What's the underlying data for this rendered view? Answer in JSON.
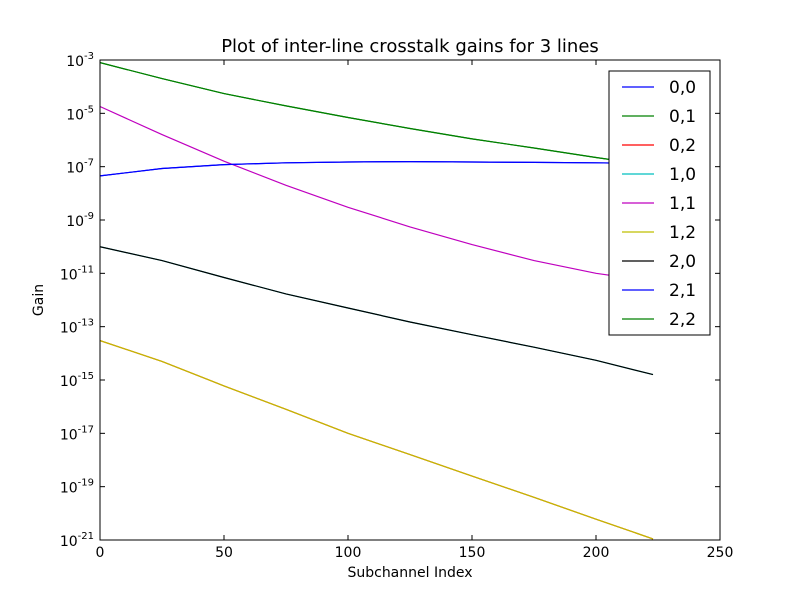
{
  "chart_data": {
    "type": "line",
    "title": "Plot of inter-line crosstalk gains for 3 lines",
    "xlabel": "Subchannel Index",
    "ylabel": "Gain",
    "xlim": [
      0,
      250
    ],
    "ylim": [
      1e-21,
      0.001
    ],
    "yscale": "log",
    "grid": false,
    "legend_position": "top-right",
    "x_ticks": [
      "0",
      "50",
      "100",
      "150",
      "200",
      "250"
    ],
    "y_ticks": [
      {
        "base": "10",
        "exp": "-3",
        "value": 0.001
      },
      {
        "base": "10",
        "exp": "-5",
        "value": 1e-05
      },
      {
        "base": "10",
        "exp": "-7",
        "value": 1e-07
      },
      {
        "base": "10",
        "exp": "-9",
        "value": 1e-09
      },
      {
        "base": "10",
        "exp": "-11",
        "value": 1e-11
      },
      {
        "base": "10",
        "exp": "-13",
        "value": 1e-13
      },
      {
        "base": "10",
        "exp": "-15",
        "value": 1e-15
      },
      {
        "base": "10",
        "exp": "-17",
        "value": 1e-17
      },
      {
        "base": "10",
        "exp": "-19",
        "value": 1e-19
      },
      {
        "base": "10",
        "exp": "-21",
        "value": 1e-21
      }
    ],
    "series": [
      {
        "name": "0,0",
        "color": "#0000ff",
        "x": [
          0,
          25,
          50,
          75,
          100,
          125,
          150,
          175,
          200,
          223
        ],
        "y": [
          4.5e-08,
          8.5e-08,
          1.2e-07,
          1.4e-07,
          1.5e-07,
          1.55e-07,
          1.5e-07,
          1.45e-07,
          1.4e-07,
          1.3e-07
        ]
      },
      {
        "name": "0,1",
        "color": "#008000",
        "x": [
          0,
          25,
          50,
          75,
          100,
          125,
          150,
          175,
          200,
          223
        ],
        "y": [
          0.0008,
          0.0002,
          5.5e-05,
          1.9e-05,
          7e-06,
          2.7e-06,
          1.1e-06,
          5e-07,
          2.2e-07,
          1.1e-07
        ]
      },
      {
        "name": "0,2",
        "color": "#ff0000",
        "x": [
          0,
          25,
          50,
          75,
          100,
          125,
          150,
          175,
          200,
          223
        ],
        "y": [
          3e-14,
          5e-15,
          6e-16,
          8e-17,
          1e-17,
          1.6e-18,
          2.5e-19,
          4e-20,
          6e-21,
          1.1e-21
        ]
      },
      {
        "name": "1,0",
        "color": "#00bfbf",
        "x": [
          0,
          25,
          50,
          75,
          100,
          125,
          150,
          175,
          200,
          223
        ],
        "y": [
          1e-10,
          3e-11,
          7e-12,
          1.7e-12,
          5e-13,
          1.5e-13,
          5e-14,
          1.7e-14,
          5.5e-15,
          1.6e-15
        ]
      },
      {
        "name": "1,1",
        "color": "#bf00bf",
        "x": [
          0,
          25,
          50,
          75,
          100,
          125,
          150,
          175,
          200,
          223
        ],
        "y": [
          1.8e-05,
          1.6e-06,
          1.6e-07,
          2e-08,
          3e-09,
          5.5e-10,
          1.2e-10,
          3e-11,
          1e-11,
          5e-12
        ]
      },
      {
        "name": "1,2",
        "color": "#bfbf00",
        "x": [
          0,
          25,
          50,
          75,
          100,
          125,
          150,
          175,
          200,
          223
        ],
        "y": [
          3e-14,
          5e-15,
          6e-16,
          8e-17,
          1e-17,
          1.6e-18,
          2.5e-19,
          4e-20,
          6e-21,
          1.1e-21
        ]
      },
      {
        "name": "2,0",
        "color": "#000000",
        "x": [
          0,
          25,
          50,
          75,
          100,
          125,
          150,
          175,
          200,
          223
        ],
        "y": [
          1e-10,
          3e-11,
          7e-12,
          1.7e-12,
          5e-13,
          1.5e-13,
          5e-14,
          1.7e-14,
          5.5e-15,
          1.6e-15
        ]
      },
      {
        "name": "2,1",
        "color": "#0000ff",
        "x": [
          0,
          25,
          50,
          75,
          100,
          125,
          150,
          175,
          200,
          223
        ],
        "y": [
          4.5e-08,
          8.5e-08,
          1.2e-07,
          1.4e-07,
          1.5e-07,
          1.55e-07,
          1.5e-07,
          1.45e-07,
          1.4e-07,
          1.3e-07
        ]
      },
      {
        "name": "2,2",
        "color": "#008000",
        "x": [
          0,
          25,
          50,
          75,
          100,
          125,
          150,
          175,
          200,
          223
        ],
        "y": [
          0.0008,
          0.0002,
          5.5e-05,
          1.9e-05,
          7e-06,
          2.7e-06,
          1.1e-06,
          5e-07,
          2.2e-07,
          1.1e-07
        ]
      }
    ]
  }
}
